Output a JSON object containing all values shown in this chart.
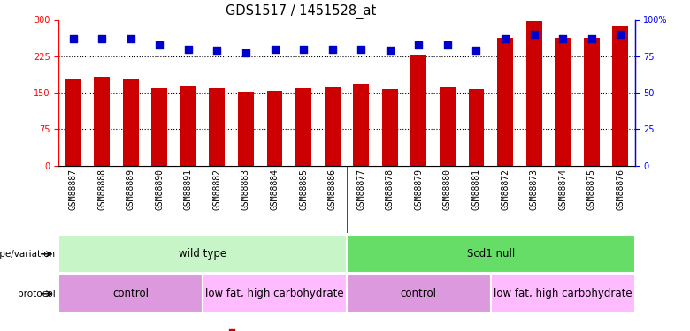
{
  "title": "GDS1517 / 1451528_at",
  "samples": [
    "GSM88887",
    "GSM88888",
    "GSM88889",
    "GSM88890",
    "GSM88891",
    "GSM88882",
    "GSM88883",
    "GSM88884",
    "GSM88885",
    "GSM88886",
    "GSM88877",
    "GSM88878",
    "GSM88879",
    "GSM88880",
    "GSM88881",
    "GSM88872",
    "GSM88873",
    "GSM88874",
    "GSM88875",
    "GSM88876"
  ],
  "counts": [
    178,
    182,
    179,
    160,
    165,
    160,
    151,
    153,
    159,
    163,
    168,
    157,
    228,
    162,
    158,
    262,
    297,
    262,
    262,
    286
  ],
  "percentile": [
    87,
    87,
    87,
    83,
    80,
    79,
    77,
    80,
    80,
    80,
    80,
    79,
    83,
    83,
    79,
    87,
    90,
    87,
    87,
    90
  ],
  "bar_color": "#cc0000",
  "dot_color": "#0000cc",
  "left_ylim": [
    0,
    300
  ],
  "right_ylim": [
    0,
    100
  ],
  "left_yticks": [
    0,
    75,
    150,
    225,
    300
  ],
  "right_yticks": [
    0,
    25,
    50,
    75,
    100
  ],
  "right_yticklabels": [
    "0",
    "25",
    "50",
    "75",
    "100%"
  ],
  "hlines": [
    75,
    150,
    225
  ],
  "genotype_groups": [
    {
      "label": "wild type",
      "start": 0,
      "end": 10,
      "color": "#c8f5c8"
    },
    {
      "label": "Scd1 null",
      "start": 10,
      "end": 20,
      "color": "#66dd66"
    }
  ],
  "protocol_groups": [
    {
      "label": "control",
      "start": 0,
      "end": 5,
      "color": "#dd99dd"
    },
    {
      "label": "low fat, high carbohydrate",
      "start": 5,
      "end": 10,
      "color": "#ffbbff"
    },
    {
      "label": "control",
      "start": 10,
      "end": 15,
      "color": "#dd99dd"
    },
    {
      "label": "low fat, high carbohydrate",
      "start": 15,
      "end": 20,
      "color": "#ffbbff"
    }
  ],
  "bar_width": 0.55,
  "dot_size": 35,
  "dot_marker": "s",
  "background_color": "#ffffff",
  "label_fontsize": 8.5,
  "tick_fontsize": 7,
  "title_fontsize": 10.5
}
